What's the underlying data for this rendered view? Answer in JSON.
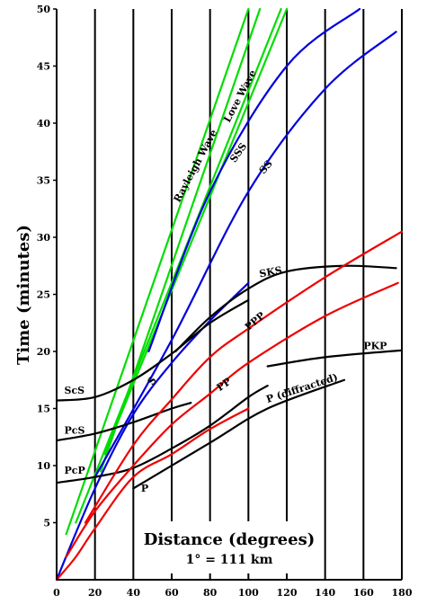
{
  "chart_data": {
    "type": "line",
    "title": "",
    "xlabel": "Distance (degrees)",
    "ylabel": "Time (minutes)",
    "note": "1° = 111 km",
    "xlim": [
      0,
      180
    ],
    "ylim": [
      0,
      50
    ],
    "x_ticks": [
      0,
      20,
      40,
      60,
      80,
      100,
      120,
      140,
      160,
      180
    ],
    "y_ticks": [
      5,
      10,
      15,
      20,
      25,
      30,
      35,
      40,
      45,
      50
    ],
    "vertical_grid": true,
    "horizontal_grid": false,
    "series": [
      {
        "name": "Rayleigh Wave",
        "color": "#00dd00",
        "points": [
          [
            5,
            4
          ],
          [
            100,
            50
          ]
        ],
        "label_at": [
          64,
          33
        ],
        "label_angle": -62
      },
      {
        "name": "Love Wave",
        "color": "#00dd00",
        "points": [
          [
            10,
            5
          ],
          [
            117,
            50
          ]
        ],
        "label_at": [
          90,
          40
        ],
        "label_angle": -62
      },
      {
        "name": "",
        "color": "#00dd00",
        "points": [
          [
            23,
            9.5
          ],
          [
            106,
            50
          ]
        ]
      },
      {
        "name": "",
        "color": "#00dd00",
        "points": [
          [
            25,
            11
          ],
          [
            120,
            50
          ]
        ]
      },
      {
        "name": "SSS",
        "color": "#0000dd",
        "points": [
          [
            48,
            20
          ],
          [
            80,
            34
          ],
          [
            120,
            45
          ],
          [
            158,
            50
          ]
        ],
        "label_at": [
          93,
          36.5
        ],
        "label_angle": -55
      },
      {
        "name": "SS",
        "color": "#0000dd",
        "points": [
          [
            20,
            9
          ],
          [
            60,
            21
          ],
          [
            100,
            34
          ],
          [
            140,
            43
          ],
          [
            177,
            48
          ]
        ],
        "label_at": [
          108,
          35.5
        ],
        "label_angle": -50
      },
      {
        "name": "S",
        "color": "#0000dd",
        "points": [
          [
            0,
            0
          ],
          [
            20,
            8
          ],
          [
            40,
            14.5
          ],
          [
            60,
            19
          ],
          [
            80,
            22.7
          ],
          [
            100,
            26
          ]
        ],
        "label_at": [
          50,
          17
        ],
        "label_angle": -55
      },
      {
        "name": "SKS",
        "color": "#000000",
        "points": [
          [
            62,
            20
          ],
          [
            80,
            23
          ],
          [
            100,
            25.5
          ],
          [
            120,
            27
          ],
          [
            150,
            27.5
          ],
          [
            177,
            27.3
          ]
        ],
        "label_at": [
          106,
          26.5
        ],
        "label_angle": -10
      },
      {
        "name": "ScS",
        "color": "#000000",
        "points": [
          [
            0,
            15.7
          ],
          [
            20,
            16
          ],
          [
            40,
            17.5
          ],
          [
            60,
            19.8
          ],
          [
            80,
            22.5
          ],
          [
            100,
            24.5
          ]
        ],
        "label_at": [
          4,
          16.3
        ],
        "label_angle": 0
      },
      {
        "name": "PcS",
        "color": "#000000",
        "points": [
          [
            0,
            12.2
          ],
          [
            20,
            12.8
          ],
          [
            40,
            13.8
          ],
          [
            60,
            15
          ],
          [
            70,
            15.5
          ]
        ],
        "label_at": [
          4,
          12.8
        ],
        "label_angle": 0
      },
      {
        "name": "PcP",
        "color": "#000000",
        "points": [
          [
            0,
            8.5
          ],
          [
            20,
            9
          ],
          [
            40,
            9.8
          ],
          [
            60,
            11.5
          ],
          [
            80,
            13.5
          ],
          [
            100,
            16
          ],
          [
            110,
            17
          ]
        ],
        "label_at": [
          4,
          9.3
        ],
        "label_angle": 0
      },
      {
        "name": "P (diffracted)",
        "color": "#000000",
        "points": [
          [
            40,
            8
          ],
          [
            80,
            12
          ],
          [
            110,
            15
          ],
          [
            150,
            17.5
          ]
        ],
        "label_at": [
          110,
          15.5
        ],
        "label_angle": -18
      },
      {
        "name": "PKP",
        "color": "#000000",
        "points": [
          [
            110,
            18.7
          ],
          [
            140,
            19.5
          ],
          [
            180,
            20.1
          ]
        ],
        "label_at": [
          160,
          20.2
        ],
        "label_angle": 0
      },
      {
        "name": "PPP",
        "color": "#ee0000",
        "points": [
          [
            15,
            5
          ],
          [
            40,
            11.8
          ],
          [
            60,
            15.8
          ],
          [
            80,
            19.5
          ],
          [
            100,
            22
          ],
          [
            140,
            26.5
          ],
          [
            180,
            30.5
          ]
        ],
        "label_at": [
          100,
          21.8
        ],
        "label_angle": -40
      },
      {
        "name": "PP",
        "color": "#ee0000",
        "points": [
          [
            5,
            2
          ],
          [
            20,
            6
          ],
          [
            40,
            10
          ],
          [
            60,
            13.6
          ],
          [
            80,
            16.3
          ],
          [
            100,
            19
          ],
          [
            140,
            23.1
          ],
          [
            178,
            26
          ]
        ],
        "label_at": [
          85,
          16.5
        ],
        "label_angle": -35
      },
      {
        "name": "P",
        "color": "#ee0000",
        "points": [
          [
            0,
            0
          ],
          [
            10,
            2
          ],
          [
            20,
            4.5
          ],
          [
            40,
            9
          ],
          [
            60,
            11
          ],
          [
            80,
            13.2
          ],
          [
            100,
            15
          ]
        ],
        "label_at": [
          44,
          7.7
        ],
        "label_angle": 0
      }
    ]
  }
}
